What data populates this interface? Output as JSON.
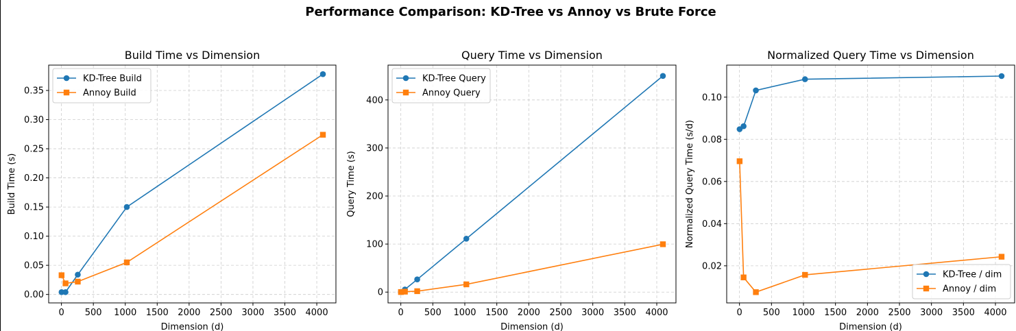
{
  "suptitle": "Performance Comparison: KD-Tree vs Annoy vs Brute Force",
  "colors": {
    "kd": "#1f77b4",
    "annoy": "#ff7f0e",
    "grid": "#cccccc",
    "axis": "#000000"
  },
  "chart_data": [
    {
      "type": "line",
      "title": "Build Time vs Dimension",
      "xlabel": "Dimension (d)",
      "ylabel": "Build Time (s)",
      "xlim": [
        -200,
        4300
      ],
      "ylim": [
        -0.0145,
        0.3935
      ],
      "xticks": [
        0,
        500,
        1000,
        1500,
        2000,
        2500,
        3000,
        3500,
        4000
      ],
      "yticks": [
        0.0,
        0.05,
        0.1,
        0.15,
        0.2,
        0.25,
        0.3,
        0.35
      ],
      "ytick_labels": [
        "0.00",
        "0.05",
        "0.10",
        "0.15",
        "0.20",
        "0.25",
        "0.30",
        "0.35"
      ],
      "grid": true,
      "legend": "top-left",
      "x": [
        2,
        64,
        256,
        1024,
        4096
      ],
      "series": [
        {
          "name": "KD-Tree Build",
          "marker": "circle",
          "color": "#1f77b4",
          "values": [
            0.004,
            0.004,
            0.034,
            0.15,
            0.378
          ]
        },
        {
          "name": "Annoy Build",
          "marker": "square",
          "color": "#ff7f0e",
          "values": [
            0.033,
            0.019,
            0.022,
            0.055,
            0.274
          ]
        }
      ]
    },
    {
      "type": "line",
      "title": "Query Time vs Dimension",
      "xlabel": "Dimension (d)",
      "ylabel": "Query Time (s)",
      "xlim": [
        -200,
        4300
      ],
      "ylim": [
        -22.5,
        472.5
      ],
      "xticks": [
        0,
        500,
        1000,
        1500,
        2000,
        2500,
        3000,
        3500,
        4000
      ],
      "yticks": [
        0,
        100,
        200,
        300,
        400
      ],
      "ytick_labels": [
        "0",
        "100",
        "200",
        "300",
        "400"
      ],
      "grid": true,
      "legend": "top-left",
      "x": [
        2,
        64,
        256,
        1024,
        4096
      ],
      "series": [
        {
          "name": "KD-Tree Query",
          "marker": "circle",
          "color": "#1f77b4",
          "values": [
            0.2,
            5.5,
            26.4,
            111.1,
            450
          ]
        },
        {
          "name": "Annoy Query",
          "marker": "square",
          "color": "#ff7f0e",
          "values": [
            0.14,
            0.9,
            1.9,
            16.1,
            99.6
          ]
        }
      ]
    },
    {
      "type": "line",
      "title": "Normalized Query Time vs Dimension",
      "xlabel": "Dimension (d)",
      "ylabel": "Normalized Query Time (s/d)",
      "xlim": [
        -200,
        4300
      ],
      "ylim": [
        0.0024,
        0.1152
      ],
      "xticks": [
        0,
        500,
        1000,
        1500,
        2000,
        2500,
        3000,
        3500,
        4000
      ],
      "yticks": [
        0.02,
        0.04,
        0.06,
        0.08,
        0.1
      ],
      "ytick_labels": [
        "0.02",
        "0.04",
        "0.06",
        "0.08",
        "0.10"
      ],
      "grid": true,
      "legend": "bottom-right",
      "x": [
        2,
        64,
        256,
        1024,
        4096
      ],
      "series": [
        {
          "name": "KD-Tree / dim",
          "marker": "circle",
          "color": "#1f77b4",
          "values": [
            0.0848,
            0.0862,
            0.1032,
            0.1085,
            0.11
          ]
        },
        {
          "name": "Annoy / dim",
          "marker": "square",
          "color": "#ff7f0e",
          "values": [
            0.0696,
            0.0145,
            0.0075,
            0.0157,
            0.0243
          ]
        }
      ]
    }
  ]
}
